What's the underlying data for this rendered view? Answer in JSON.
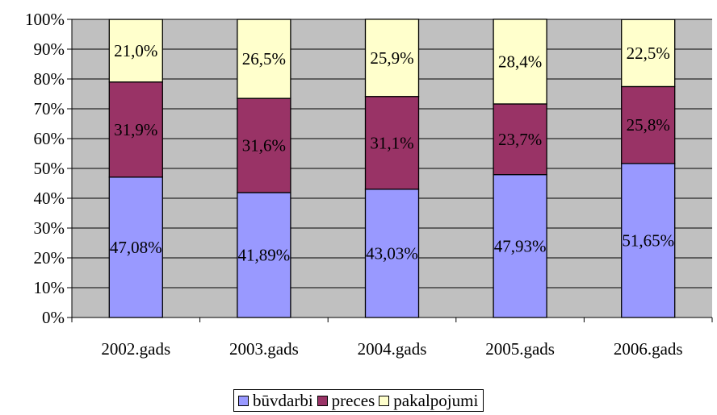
{
  "chart_data": {
    "type": "bar",
    "stacked": true,
    "percent_stacked": true,
    "categories": [
      "2002.gads",
      "2003.gads",
      "2004.gads",
      "2005.gads",
      "2006.gads"
    ],
    "series": [
      {
        "name": "būvdarbi",
        "values": [
          47.08,
          41.89,
          43.03,
          47.93,
          51.65
        ],
        "labels": [
          "47,08%",
          "41,89%",
          "43,03%",
          "47,93%",
          "51,65%"
        ],
        "color": "#9999ff"
      },
      {
        "name": "preces",
        "values": [
          31.9,
          31.6,
          31.1,
          23.7,
          25.8
        ],
        "labels": [
          "31,9%",
          "31,6%",
          "31,1%",
          "23,7%",
          "25,8%"
        ],
        "color": "#993366"
      },
      {
        "name": "pakalpojumi",
        "values": [
          21.0,
          26.5,
          25.9,
          28.4,
          22.5
        ],
        "labels": [
          "21,0%",
          "26,5%",
          "25,9%",
          "28,4%",
          "22,5%"
        ],
        "color": "#ffffcc"
      }
    ],
    "yticks": [
      "0%",
      "10%",
      "20%",
      "30%",
      "40%",
      "50%",
      "60%",
      "70%",
      "80%",
      "90%",
      "100%"
    ],
    "ylim": [
      0,
      100
    ],
    "grid": true,
    "plot_background": "#c0c0c0",
    "legend_position": "bottom",
    "title": "",
    "xlabel": "",
    "ylabel": ""
  }
}
